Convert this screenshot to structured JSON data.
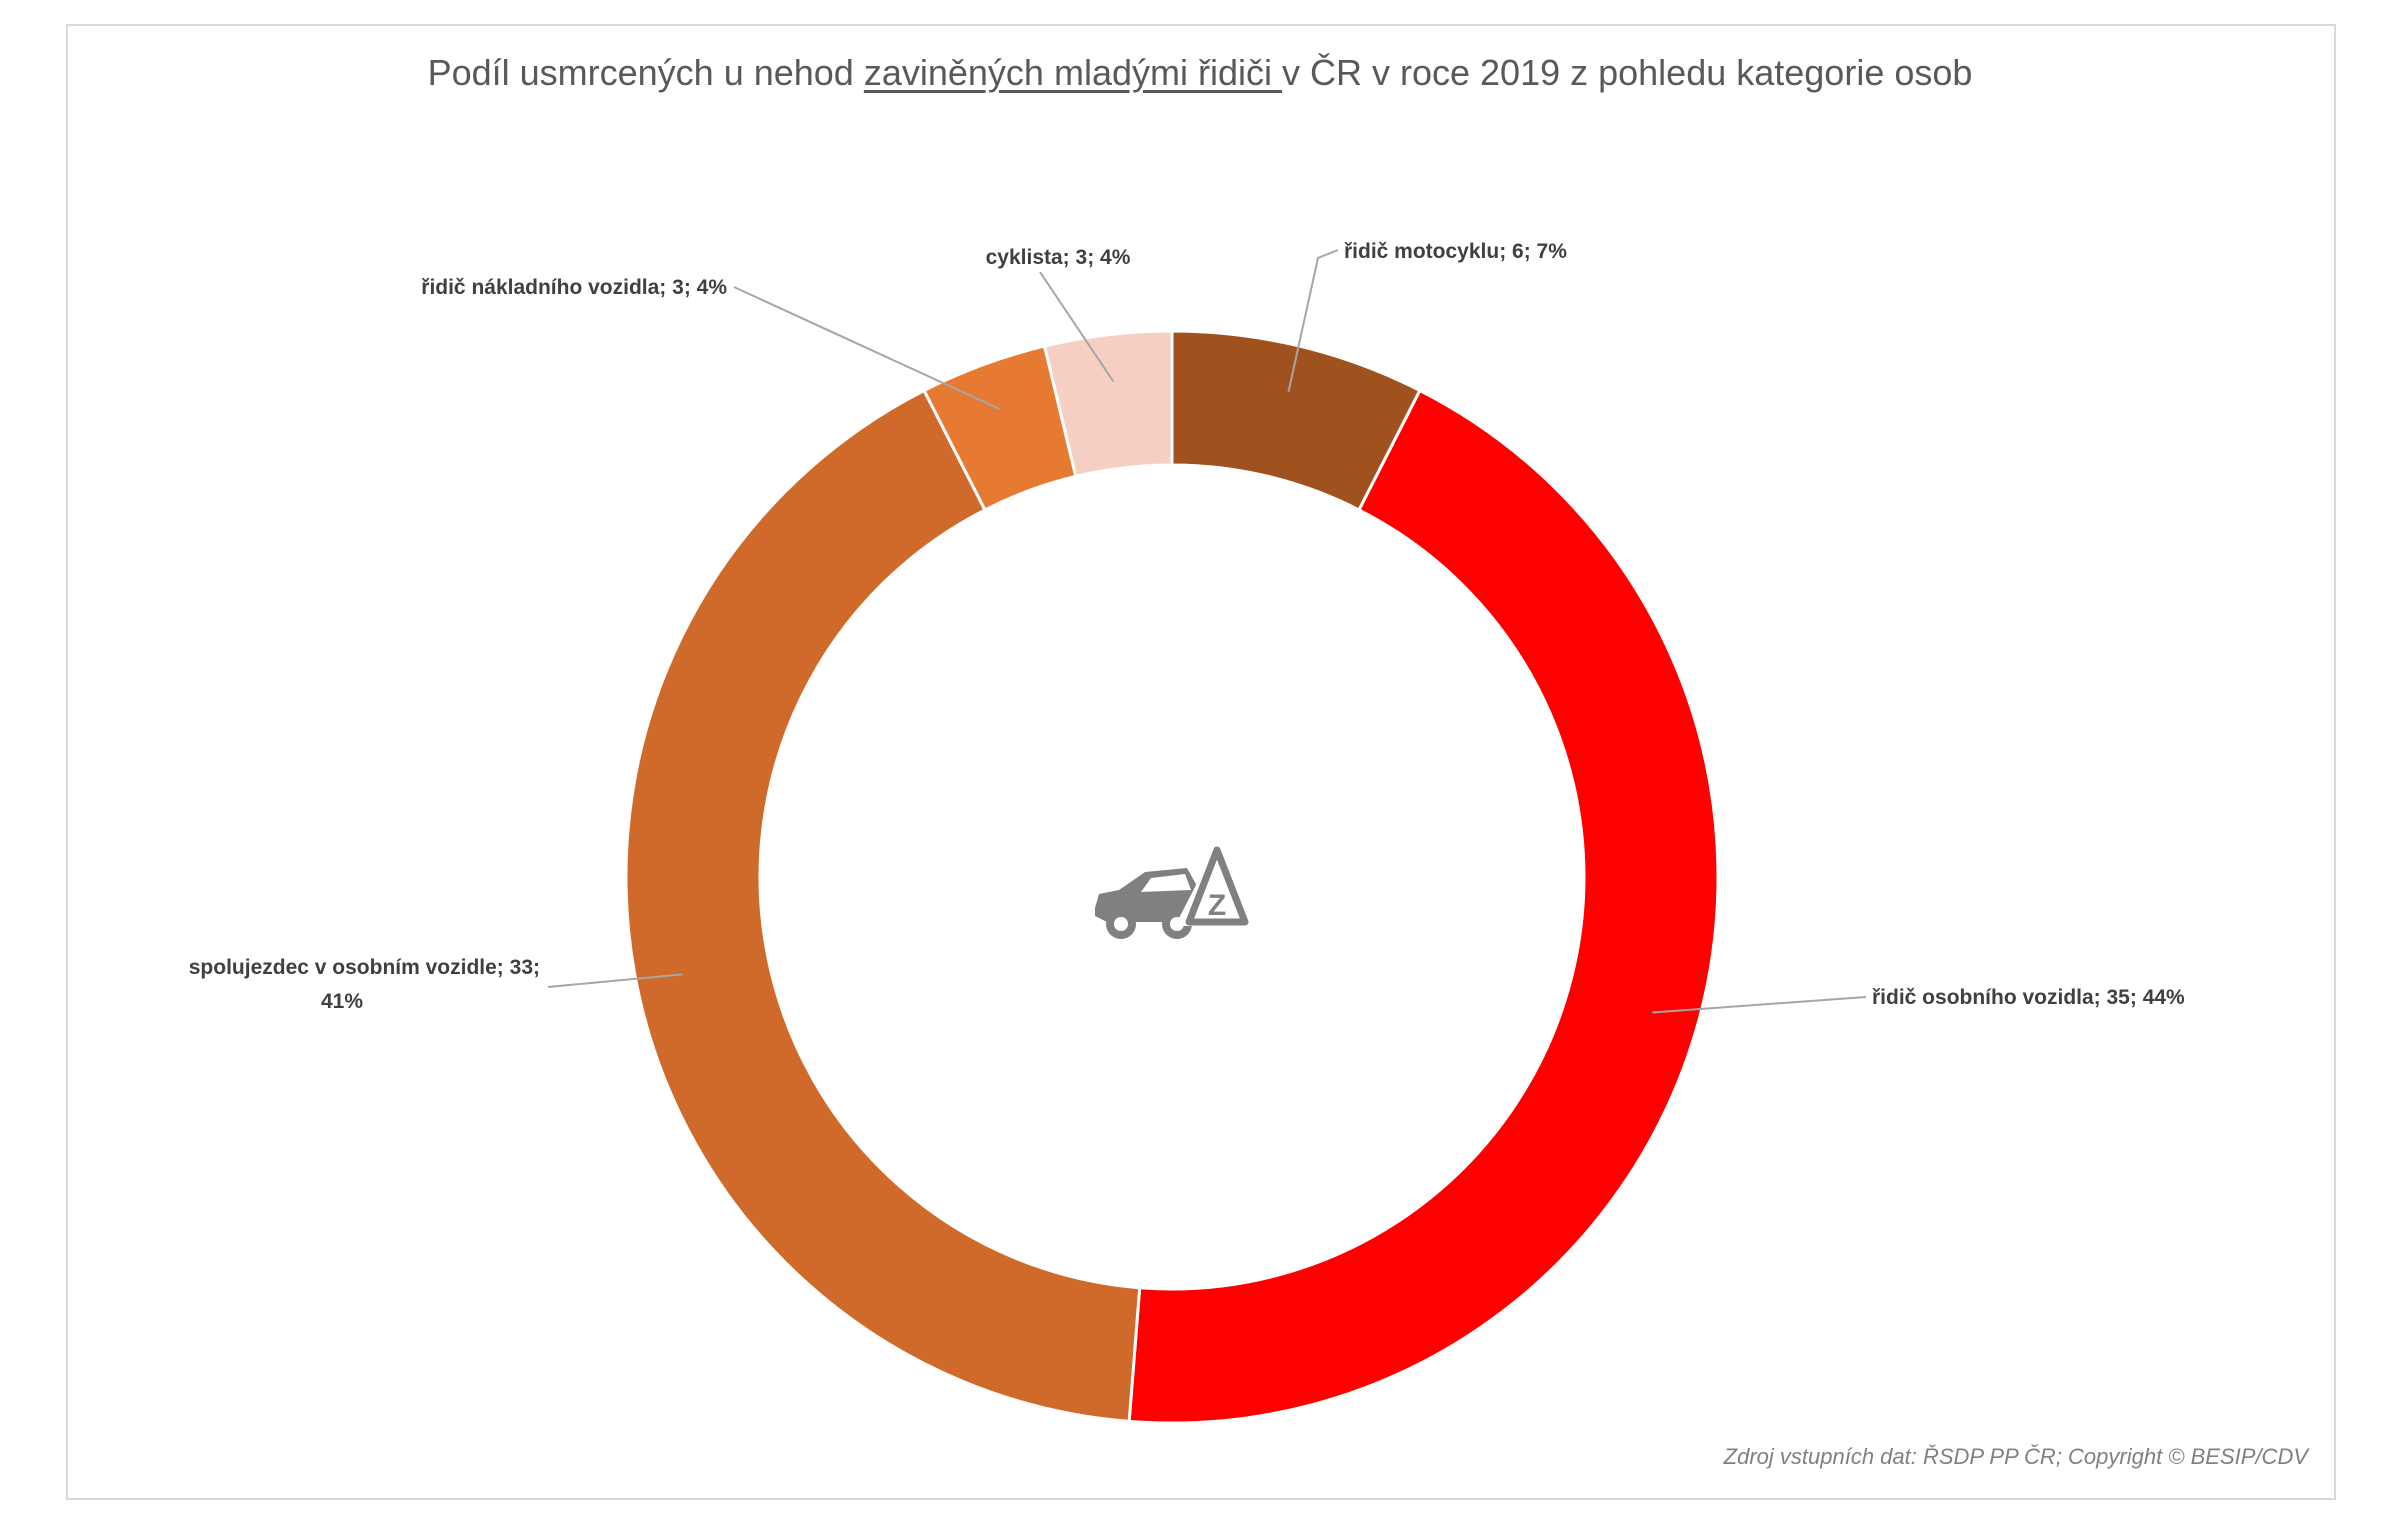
{
  "chart_data": {
    "type": "pie",
    "style": "donut",
    "title": {
      "part1": "Podíl usmrcených u nehod ",
      "part2": "zaviněných mladými řidiči ",
      "part3": "v ČR v roce 2019 z pohledu kategorie osob"
    },
    "slices": [
      {
        "name": "řidič motocyklu",
        "value": 6,
        "percent": 7,
        "color": "#a0521e",
        "label": "řidič motocyklu; 6; 7%"
      },
      {
        "name": "řidič osobního vozidla",
        "value": 35,
        "percent": 44,
        "color": "#ff0000",
        "label": "řidič osobního vozidla; 35; 44%"
      },
      {
        "name": "spolujezdec v osobním vozidle",
        "value": 33,
        "percent": 41,
        "color": "#d06a2a",
        "label_line1": "spolujezdec v osobním vozidle; 33;",
        "label_line2": "41%"
      },
      {
        "name": "řidič nákladního vozidla",
        "value": 3,
        "percent": 4,
        "color": "#e67a32",
        "label": "řidič nákladního vozidla; 3; 4%"
      },
      {
        "name": "cyklista",
        "value": 3,
        "percent": 4,
        "color": "#f6cfc3",
        "label": "cyklista; 3; 4%"
      }
    ],
    "center_icon": "car-warning-z-icon",
    "source_note": "Zdroj vstupních dat: ŘSDP PP ČR; Copyright © BESIP/CDV"
  }
}
